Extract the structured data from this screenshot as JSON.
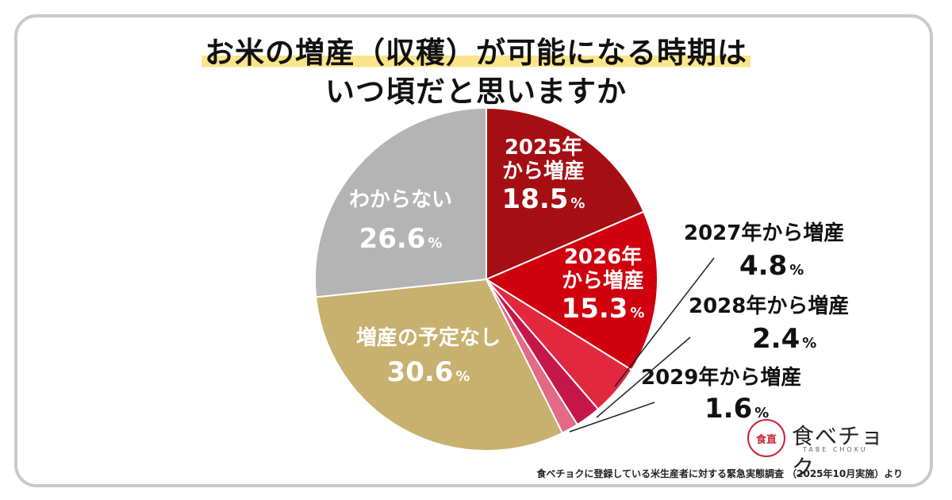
{
  "title_line1": "お米の増産（収穫）が可能になる時期は",
  "title_line2": "いつ頃だと思いますか",
  "chart_data": {
    "type": "pie",
    "unit": "%",
    "slices": [
      {
        "label": "2025年から増産",
        "value": 18.5,
        "color": "#a50f14"
      },
      {
        "label": "2026年から増産",
        "value": 15.3,
        "color": "#d0000f"
      },
      {
        "label": "2027年から増産",
        "value": 4.8,
        "color": "#e2283f"
      },
      {
        "label": "2028年から増産",
        "value": 2.4,
        "color": "#c5164a"
      },
      {
        "label": "2029年から増産",
        "value": 1.6,
        "color": "#e26a86"
      },
      {
        "label": "増産の予定なし",
        "value": 30.6,
        "color": "#c8b06e"
      },
      {
        "label": "わからない",
        "value": 26.6,
        "color": "#b4b4b4"
      }
    ]
  },
  "labels": {
    "l2025_line1": "2025年",
    "l2025_line2": "から増産",
    "l2025_value": "18.5",
    "l2026_line1": "2026年",
    "l2026_line2": "から増産",
    "l2026_value": "15.3",
    "l2027_cat": "2027年から増産",
    "l2027_value": "4.8",
    "l2028_cat": "2028年から増産",
    "l2028_value": "2.4",
    "l2029_cat": "2029年から増産",
    "l2029_value": "1.6",
    "none_cat": "増産の予定なし",
    "none_value": "30.6",
    "unknown_cat": "わからない",
    "unknown_value": "26.6",
    "pct": "%"
  },
  "logo": {
    "mark": "食直",
    "name": "食べチョク",
    "sub": "TABE CHOKU"
  },
  "source": "食べチョクに登録している米生産者に対する緊急実態調査 （2025年10月実施）より"
}
